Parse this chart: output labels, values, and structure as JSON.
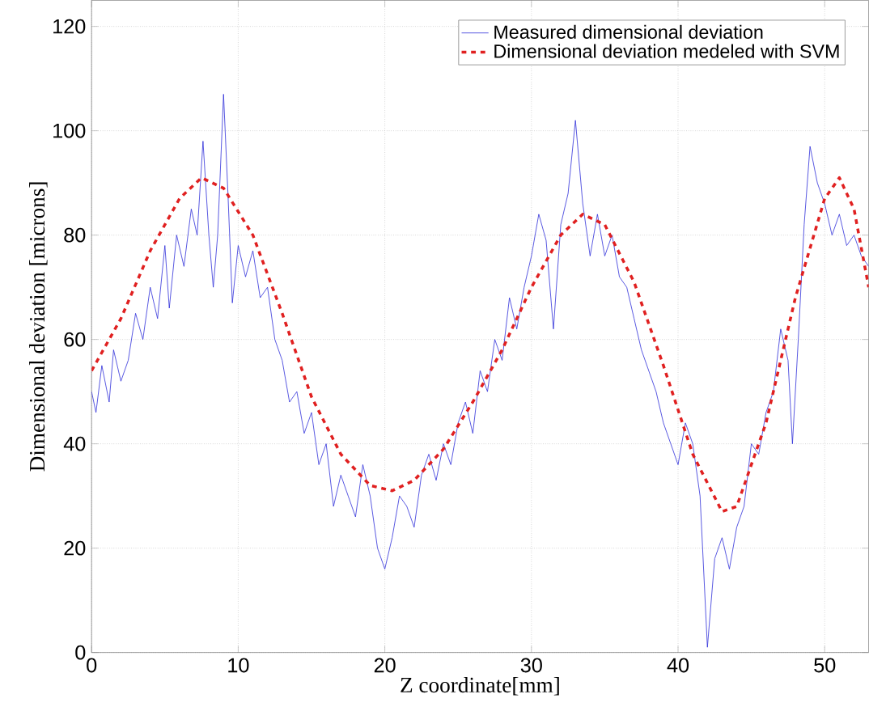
{
  "chart_data": {
    "type": "line",
    "xlabel": "Z coordinate[mm]",
    "ylabel": "Dimensional deviation [microns]",
    "xlim": [
      0,
      53
    ],
    "ylim": [
      0,
      125
    ],
    "xticks": [
      0,
      10,
      20,
      30,
      40,
      50
    ],
    "yticks": [
      0,
      20,
      40,
      60,
      80,
      100,
      120
    ],
    "grid": true,
    "legend": "top right",
    "series": [
      {
        "name": "Measured dimensional deviation",
        "color": "#2a2ad8",
        "line_style": "solid",
        "x": [
          0,
          0.3,
          0.7,
          1.2,
          1.5,
          2,
          2.5,
          3,
          3.5,
          4,
          4.5,
          5,
          5.3,
          5.8,
          6.3,
          6.8,
          7.2,
          7.6,
          8,
          8.3,
          8.6,
          9,
          9.3,
          9.6,
          10,
          10.5,
          11,
          11.5,
          12,
          12.5,
          13,
          13.5,
          14,
          14.5,
          15,
          15.5,
          16,
          16.5,
          17,
          17.5,
          18,
          18.5,
          19,
          19.5,
          20,
          20.5,
          21,
          21.5,
          22,
          22.5,
          23,
          23.5,
          24,
          24.5,
          25,
          25.5,
          26,
          26.5,
          27,
          27.5,
          28,
          28.5,
          29,
          29.5,
          30,
          30.5,
          31,
          31.5,
          32,
          32.5,
          33,
          33.5,
          34,
          34.5,
          35,
          35.5,
          36,
          36.5,
          37,
          37.5,
          38,
          38.5,
          39,
          39.5,
          40,
          40.5,
          41,
          41.5,
          42,
          42.5,
          43,
          43.5,
          44,
          44.5,
          45,
          45.5,
          46,
          46.5,
          47,
          47.5,
          47.8,
          48.2,
          48.6,
          49,
          49.5,
          50,
          50.5,
          51,
          51.5,
          52,
          52.5,
          53
        ],
        "values": [
          50,
          46,
          55,
          48,
          58,
          52,
          56,
          65,
          60,
          70,
          64,
          78,
          66,
          80,
          74,
          85,
          80,
          98,
          80,
          70,
          80,
          107,
          88,
          67,
          78,
          72,
          77,
          68,
          70,
          60,
          56,
          48,
          50,
          42,
          46,
          36,
          40,
          28,
          34,
          30,
          26,
          36,
          30,
          20,
          16,
          22,
          30,
          28,
          24,
          34,
          38,
          33,
          40,
          36,
          44,
          48,
          42,
          54,
          50,
          60,
          56,
          68,
          62,
          70,
          76,
          84,
          79,
          62,
          82,
          88,
          102,
          86,
          76,
          84,
          76,
          80,
          72,
          70,
          64,
          58,
          54,
          50,
          44,
          40,
          36,
          44,
          40,
          30,
          1,
          18,
          22,
          16,
          24,
          28,
          40,
          38,
          46,
          50,
          62,
          56,
          40,
          60,
          82,
          97,
          90,
          86,
          80,
          84,
          78,
          80,
          76,
          74
        ]
      },
      {
        "name": "Dimensional deviation medeled with SVM",
        "color": "#e02020",
        "line_style": "dashed",
        "x": [
          0,
          2,
          4,
          6,
          7.5,
          9,
          11,
          13,
          15,
          17,
          19,
          20.5,
          22,
          24,
          26,
          28,
          30,
          32,
          33.5,
          35,
          37,
          39,
          41,
          43,
          44,
          46,
          48,
          50,
          51,
          52,
          53
        ],
        "values": [
          54,
          64,
          77,
          87,
          91,
          89,
          80,
          65,
          49,
          38,
          32,
          31,
          33,
          39,
          48,
          58,
          70,
          80,
          84,
          82,
          71,
          55,
          38,
          27,
          28,
          44,
          68,
          87,
          91,
          85,
          70
        ]
      }
    ]
  }
}
